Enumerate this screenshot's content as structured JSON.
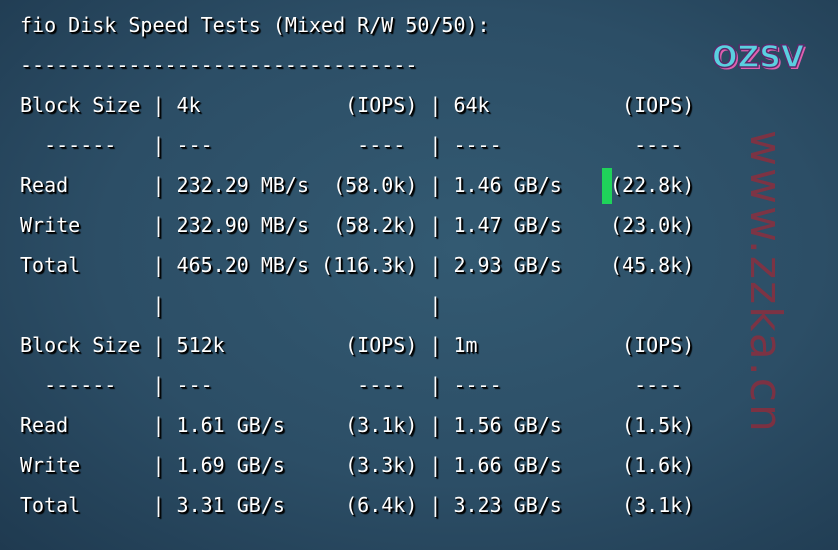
{
  "terminal": {
    "lines": [
      "fio Disk Speed Tests (Mixed R/W 50/50):",
      "---------------------------------",
      "Block Size | 4k            (IOPS) | 64k           (IOPS)",
      "  ------   | ---            ----  | ----           ---- ",
      "Read       | 232.29 MB/s  (58.0k) | 1.46 GB/s    (22.8k)",
      "Write      | 232.90 MB/s  (58.2k) | 1.47 GB/s    (23.0k)",
      "Total      | 465.20 MB/s (116.3k) | 2.93 GB/s    (45.8k)",
      "           |                      |                     ",
      "Block Size | 512k          (IOPS) | 1m            (IOPS)",
      "  ------   | ---            ----  | ----           ---- ",
      "Read       | 1.61 GB/s     (3.1k) | 1.56 GB/s     (1.5k)",
      "Write      | 1.69 GB/s     (3.3k) | 1.66 GB/s     (1.6k)",
      "Total      | 3.31 GB/s     (6.4k) | 3.23 GB/s     (3.1k)"
    ],
    "cursor_color": "#1fd35a"
  },
  "watermark": {
    "text": "www.zzka.cn"
  },
  "logo": {
    "text": "OZSV"
  }
}
